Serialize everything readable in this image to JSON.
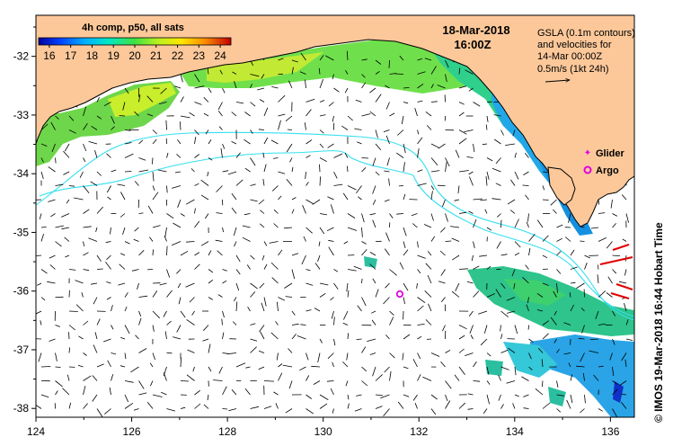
{
  "header": {
    "composite_label": "4h comp, p50, all sats",
    "date": "18-Mar-2018",
    "time": "16:00Z"
  },
  "colorbar": {
    "ticks": [
      "16",
      "17",
      "18",
      "19",
      "20",
      "21",
      "22",
      "23",
      "24"
    ],
    "min": 15.5,
    "max": 24.5
  },
  "note": {
    "line1": "GSLA (0.1m contours)",
    "line2": "and velocities for",
    "line3": "14-Mar 00:00Z",
    "line4": "0.5m/s (1kt 24h)"
  },
  "legend": {
    "glider_label": "Glider",
    "argo_label": "Argo"
  },
  "credit": "© IMOS 19-Mar-2018 16:44 Hobart Time",
  "axes": {
    "lon_ticks": [
      "124",
      "126",
      "128",
      "130",
      "132",
      "134",
      "136"
    ],
    "lat_ticks": [
      "-32",
      "-33",
      "-34",
      "-35",
      "-36",
      "-37",
      "-38"
    ],
    "lon_range": [
      124,
      136.5
    ],
    "lat_range": [
      -38.15,
      -31.3
    ]
  },
  "argo": {
    "lon": 131.6,
    "lat": -36.05
  },
  "colors": {
    "land": "#fcc89a",
    "ocean": "#ffffff",
    "contour": "#35dff0",
    "arrow": "#000000",
    "glider": "#e000e0",
    "argo": "#e000e0",
    "glider_track": "#e00000"
  }
}
